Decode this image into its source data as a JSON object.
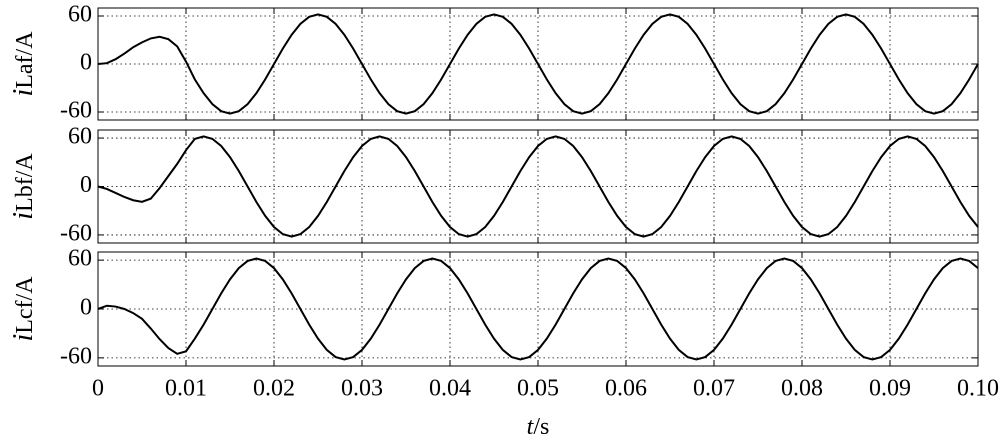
{
  "chart_data": [
    {
      "type": "line",
      "ylabel": {
        "symbol": "i",
        "rest": "Laf/A"
      },
      "xlim": [
        0,
        0.1
      ],
      "ylim": [
        -70,
        70
      ],
      "yticks": [
        -60,
        0,
        60
      ],
      "xticks": [
        0,
        0.01,
        0.02,
        0.03,
        0.04,
        0.05,
        0.06,
        0.07,
        0.08,
        0.09,
        {
          "value": 0.1,
          "label": "0.10"
        }
      ],
      "grid": true,
      "x": [
        0,
        0.001,
        0.002,
        0.003,
        0.004,
        0.005,
        0.006,
        0.007,
        0.008,
        0.009,
        0.01,
        0.011,
        0.012,
        0.013,
        0.014,
        0.015,
        0.016,
        0.017,
        0.018,
        0.019,
        0.02,
        0.021,
        0.022,
        0.023,
        0.024,
        0.025,
        0.026,
        0.027,
        0.028,
        0.029,
        0.03,
        0.031,
        0.032,
        0.033,
        0.034,
        0.035,
        0.036,
        0.037,
        0.038,
        0.039,
        0.04,
        0.041,
        0.042,
        0.043,
        0.044,
        0.045,
        0.046,
        0.047,
        0.048,
        0.049,
        0.05,
        0.051,
        0.052,
        0.053,
        0.054,
        0.055,
        0.056,
        0.057,
        0.058,
        0.059,
        0.06,
        0.061,
        0.062,
        0.063,
        0.064,
        0.065,
        0.066,
        0.067,
        0.068,
        0.069,
        0.07,
        0.071,
        0.072,
        0.073,
        0.074,
        0.075,
        0.076,
        0.077,
        0.078,
        0.079,
        0.08,
        0.081,
        0.082,
        0.083,
        0.084,
        0.085,
        0.086,
        0.087,
        0.088,
        0.089,
        0.09,
        0.091,
        0.092,
        0.093,
        0.094,
        0.095,
        0.096,
        0.097,
        0.098,
        0.099,
        0.1
      ],
      "series": [
        {
          "color": "#000000",
          "values": [
            0,
            1,
            6,
            13,
            21,
            27,
            32,
            34,
            31,
            22,
            3,
            -19.2,
            -36.4,
            -50.2,
            -59,
            -62,
            -59,
            -50.2,
            -36.4,
            -19.2,
            0,
            19.2,
            36.4,
            50.2,
            59,
            62,
            59,
            50.2,
            36.4,
            19.2,
            0,
            -19.2,
            -36.4,
            -50.2,
            -59,
            -62,
            -59,
            -50.2,
            -36.4,
            -19.2,
            0,
            19.2,
            36.4,
            50.2,
            59,
            62,
            59,
            50.2,
            36.4,
            19.2,
            0,
            -19.2,
            -36.4,
            -50.2,
            -59,
            -62,
            -59,
            -50.2,
            -36.4,
            -19.2,
            0,
            19.2,
            36.4,
            50.2,
            59,
            62,
            59,
            50.2,
            36.4,
            19.2,
            0,
            -19.2,
            -36.4,
            -50.2,
            -59,
            -62,
            -59,
            -50.2,
            -36.4,
            -19.2,
            0,
            19.2,
            36.4,
            50.2,
            59,
            62,
            59,
            50.2,
            36.4,
            19.2,
            0,
            -19.2,
            -36.4,
            -50.2,
            -59,
            -62,
            -59,
            -50.2,
            -36.4,
            -19.2,
            0
          ]
        }
      ]
    },
    {
      "type": "line",
      "ylabel": {
        "symbol": "i",
        "rest": "Lbf/A"
      },
      "xlim": [
        0,
        0.1
      ],
      "ylim": [
        -70,
        70
      ],
      "yticks": [
        -60,
        0,
        60
      ],
      "xticks": [
        0,
        0.01,
        0.02,
        0.03,
        0.04,
        0.05,
        0.06,
        0.07,
        0.08,
        0.09,
        {
          "value": 0.1,
          "label": "0.10"
        }
      ],
      "grid": true,
      "x": [
        0,
        0.001,
        0.002,
        0.003,
        0.004,
        0.005,
        0.006,
        0.007,
        0.008,
        0.009,
        0.01,
        0.011,
        0.012,
        0.013,
        0.014,
        0.015,
        0.016,
        0.017,
        0.018,
        0.019,
        0.02,
        0.021,
        0.022,
        0.023,
        0.024,
        0.025,
        0.026,
        0.027,
        0.028,
        0.029,
        0.03,
        0.031,
        0.032,
        0.033,
        0.034,
        0.035,
        0.036,
        0.037,
        0.038,
        0.039,
        0.04,
        0.041,
        0.042,
        0.043,
        0.044,
        0.045,
        0.046,
        0.047,
        0.048,
        0.049,
        0.05,
        0.051,
        0.052,
        0.053,
        0.054,
        0.055,
        0.056,
        0.057,
        0.058,
        0.059,
        0.06,
        0.061,
        0.062,
        0.063,
        0.064,
        0.065,
        0.066,
        0.067,
        0.068,
        0.069,
        0.07,
        0.071,
        0.072,
        0.073,
        0.074,
        0.075,
        0.076,
        0.077,
        0.078,
        0.079,
        0.08,
        0.081,
        0.082,
        0.083,
        0.084,
        0.085,
        0.086,
        0.087,
        0.088,
        0.089,
        0.09,
        0.091,
        0.092,
        0.093,
        0.094,
        0.095,
        0.096,
        0.097,
        0.098,
        0.099,
        0.1
      ],
      "series": [
        {
          "color": "#000000",
          "values": [
            0,
            -3,
            -8,
            -13,
            -17,
            -19,
            -15,
            -2,
            13,
            28,
            45,
            59,
            62,
            59,
            50.2,
            36.4,
            19.2,
            0,
            -19.2,
            -36.4,
            -50.2,
            -59,
            -62,
            -59,
            -50.2,
            -36.4,
            -19.2,
            0,
            19.2,
            36.4,
            50.2,
            59,
            62,
            59,
            50.2,
            36.4,
            19.2,
            0,
            -19.2,
            -36.4,
            -50.2,
            -59,
            -62,
            -59,
            -50.2,
            -36.4,
            -19.2,
            0,
            19.2,
            36.4,
            50.2,
            59,
            62,
            59,
            50.2,
            36.4,
            19.2,
            0,
            -19.2,
            -36.4,
            -50.2,
            -59,
            -62,
            -59,
            -50.2,
            -36.4,
            -19.2,
            0,
            19.2,
            36.4,
            50.2,
            59,
            62,
            59,
            50.2,
            36.4,
            19.2,
            0,
            -19.2,
            -36.4,
            -50.2,
            -59,
            -62,
            -59,
            -50.2,
            -36.4,
            -19.2,
            0,
            19.2,
            36.4,
            50.2,
            59,
            62,
            59,
            50.2,
            36.4,
            19.2,
            0,
            -19.2,
            -36.4,
            -50.2
          ]
        }
      ]
    },
    {
      "type": "line",
      "ylabel": {
        "symbol": "i",
        "rest": "Lcf/A"
      },
      "xlabel": {
        "symbol": "t",
        "rest": "/s"
      },
      "xlim": [
        0,
        0.1
      ],
      "ylim": [
        -70,
        70
      ],
      "yticks": [
        -60,
        0,
        60
      ],
      "xticks": [
        0,
        0.01,
        0.02,
        0.03,
        0.04,
        0.05,
        0.06,
        0.07,
        0.08,
        0.09,
        {
          "value": 0.1,
          "label": "0.10"
        }
      ],
      "grid": true,
      "x": [
        0,
        0.001,
        0.002,
        0.003,
        0.004,
        0.005,
        0.006,
        0.007,
        0.008,
        0.009,
        0.01,
        0.011,
        0.012,
        0.013,
        0.014,
        0.015,
        0.016,
        0.017,
        0.018,
        0.019,
        0.02,
        0.021,
        0.022,
        0.023,
        0.024,
        0.025,
        0.026,
        0.027,
        0.028,
        0.029,
        0.03,
        0.031,
        0.032,
        0.033,
        0.034,
        0.035,
        0.036,
        0.037,
        0.038,
        0.039,
        0.04,
        0.041,
        0.042,
        0.043,
        0.044,
        0.045,
        0.046,
        0.047,
        0.048,
        0.049,
        0.05,
        0.051,
        0.052,
        0.053,
        0.054,
        0.055,
        0.056,
        0.057,
        0.058,
        0.059,
        0.06,
        0.061,
        0.062,
        0.063,
        0.064,
        0.065,
        0.066,
        0.067,
        0.068,
        0.069,
        0.07,
        0.071,
        0.072,
        0.073,
        0.074,
        0.075,
        0.076,
        0.077,
        0.078,
        0.079,
        0.08,
        0.081,
        0.082,
        0.083,
        0.084,
        0.085,
        0.086,
        0.087,
        0.088,
        0.089,
        0.09,
        0.091,
        0.092,
        0.093,
        0.094,
        0.095,
        0.096,
        0.097,
        0.098,
        0.099,
        0.1
      ],
      "series": [
        {
          "color": "#000000",
          "values": [
            0,
            4,
            3,
            0,
            -5,
            -12,
            -24,
            -37,
            -48,
            -55,
            -52,
            -36.4,
            -19.2,
            0,
            19.2,
            36.4,
            50.2,
            59,
            62,
            59,
            50.2,
            36.4,
            19.2,
            0,
            -19.2,
            -36.4,
            -50.2,
            -59,
            -62,
            -59,
            -50.2,
            -36.4,
            -19.2,
            0,
            19.2,
            36.4,
            50.2,
            59,
            62,
            59,
            50.2,
            36.4,
            19.2,
            0,
            -19.2,
            -36.4,
            -50.2,
            -59,
            -62,
            -59,
            -50.2,
            -36.4,
            -19.2,
            0,
            19.2,
            36.4,
            50.2,
            59,
            62,
            59,
            50.2,
            36.4,
            19.2,
            0,
            -19.2,
            -36.4,
            -50.2,
            -59,
            -62,
            -59,
            -50.2,
            -36.4,
            -19.2,
            0,
            19.2,
            36.4,
            50.2,
            59,
            62,
            59,
            50.2,
            36.4,
            19.2,
            0,
            -19.2,
            -36.4,
            -50.2,
            -59,
            -62,
            -59,
            -50.2,
            -36.4,
            -19.2,
            0,
            19.2,
            36.4,
            50.2,
            59,
            62,
            59,
            50.2
          ]
        }
      ]
    }
  ]
}
